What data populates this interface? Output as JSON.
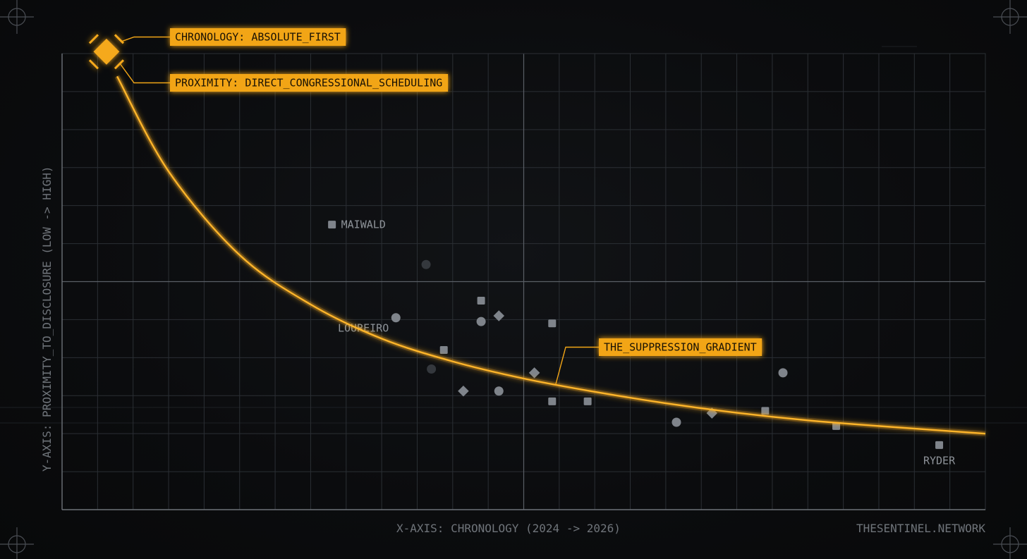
{
  "colors": {
    "accent": "#f2a516",
    "background": "#0b0c0e",
    "grid": "#2b2f34",
    "marker": "#7f848b"
  },
  "chart_data": {
    "type": "scatter",
    "xlabel": "X-AXIS: CHRONOLOGY (2024 -> 2026)",
    "ylabel": "Y-AXIS: PROXIMITY_TO_DISCLOSURE (LOW -> HIGH)",
    "xlim": [
      0,
      26
    ],
    "ylim": [
      0,
      12
    ],
    "grid": true,
    "credit": "THESENTINEL.NETWORK",
    "highlight_point": {
      "x": 1.25,
      "y": 12.05,
      "shape": "diamond",
      "annotations": [
        "CHRONOLOGY: ABSOLUTE_FIRST",
        "PROXIMITY: DIRECT_CONGRESSIONAL_SCHEDULING"
      ]
    },
    "trend_curve": {
      "label": "THE_SUPPRESSION_GRADIENT",
      "label_at_x": 13.9,
      "points": [
        [
          1.55,
          11.4
        ],
        [
          3.0,
          8.9
        ],
        [
          5.0,
          6.7
        ],
        [
          7.0,
          5.4
        ],
        [
          9.0,
          4.5
        ],
        [
          11.0,
          3.9
        ],
        [
          13.0,
          3.45
        ],
        [
          15.0,
          3.1
        ],
        [
          17.0,
          2.8
        ],
        [
          19.0,
          2.55
        ],
        [
          21.0,
          2.35
        ],
        [
          23.0,
          2.2
        ],
        [
          26.0,
          2.0
        ]
      ]
    },
    "points": [
      {
        "x": 7.6,
        "y": 7.5,
        "shape": "square",
        "label": "MAIWALD"
      },
      {
        "x": 9.4,
        "y": 5.05,
        "shape": "circle",
        "label": "LOUREIRO"
      },
      {
        "x": 24.7,
        "y": 1.7,
        "shape": "square",
        "label": "RYDER"
      },
      {
        "x": 12.3,
        "y": 5.1,
        "shape": "diamond"
      },
      {
        "x": 11.8,
        "y": 5.5,
        "shape": "square"
      },
      {
        "x": 11.8,
        "y": 4.95,
        "shape": "circle"
      },
      {
        "x": 13.8,
        "y": 4.9,
        "shape": "square"
      },
      {
        "x": 10.75,
        "y": 4.2,
        "shape": "square"
      },
      {
        "x": 13.3,
        "y": 3.6,
        "shape": "diamond"
      },
      {
        "x": 11.3,
        "y": 3.12,
        "shape": "diamond"
      },
      {
        "x": 12.3,
        "y": 3.12,
        "shape": "circle"
      },
      {
        "x": 13.8,
        "y": 2.85,
        "shape": "square"
      },
      {
        "x": 14.8,
        "y": 2.85,
        "shape": "square"
      },
      {
        "x": 20.3,
        "y": 3.6,
        "shape": "circle"
      },
      {
        "x": 17.3,
        "y": 2.3,
        "shape": "circle"
      },
      {
        "x": 18.3,
        "y": 2.54,
        "shape": "diamond"
      },
      {
        "x": 19.8,
        "y": 2.6,
        "shape": "square"
      },
      {
        "x": 21.8,
        "y": 2.2,
        "shape": "square"
      }
    ],
    "faint_points": [
      {
        "x": 10.25,
        "y": 6.45,
        "shape": "circle"
      },
      {
        "x": 10.4,
        "y": 3.7,
        "shape": "circle"
      }
    ]
  }
}
